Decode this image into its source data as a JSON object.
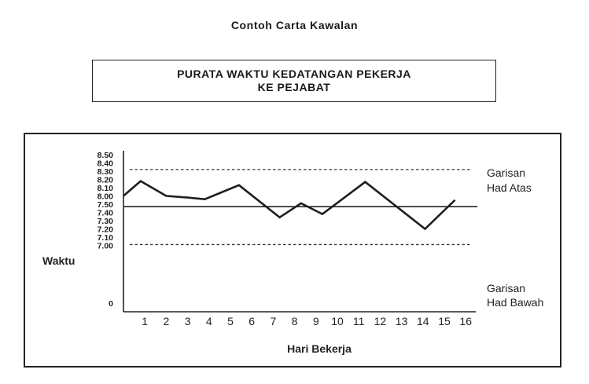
{
  "page": {
    "heading": "Contoh Carta Kawalan"
  },
  "chart_data": {
    "type": "line",
    "title_line1": "PURATA WAKTU KEDATANGAN PEKERJA",
    "title_line2": "KE PEJABAT",
    "ylabel": "Waktu",
    "xlabel": "Hari Bekerja",
    "y_ticks": [
      "8.50",
      "8.40",
      "8.30",
      "8.20",
      "8.10",
      "8.00",
      "7.50",
      "7.40",
      "7.30",
      "7.20",
      "7.10",
      "7.00",
      "0"
    ],
    "x_ticks": [
      "1",
      "2",
      "3",
      "4",
      "5",
      "6",
      "7",
      "8",
      "9",
      "10",
      "11",
      "12",
      "13",
      "14",
      "15",
      "16"
    ],
    "series": [
      {
        "x": [
          0,
          0.8,
          2,
          3,
          3.8,
          5.4,
          7.3,
          8.3,
          9.3,
          11.3,
          14.1,
          15.5
        ],
        "y": [
          "8.00",
          "8.18",
          "8.00",
          "7.58",
          "7.56",
          "8.13",
          "7.34",
          "7.51",
          "7.38",
          "8.17",
          "7.20",
          "7.55"
        ]
      }
    ],
    "upper_limit": {
      "value": "8.32",
      "label_line1": "Garisan",
      "label_line2": "Had Atas"
    },
    "center_line": {
      "value": "7.47"
    },
    "lower_limit": {
      "value": "7.01",
      "label_line1": "Garisan",
      "label_line2": "Had Bawah"
    },
    "line_color": "#1f1f1f",
    "grid": false,
    "legend": "none"
  }
}
